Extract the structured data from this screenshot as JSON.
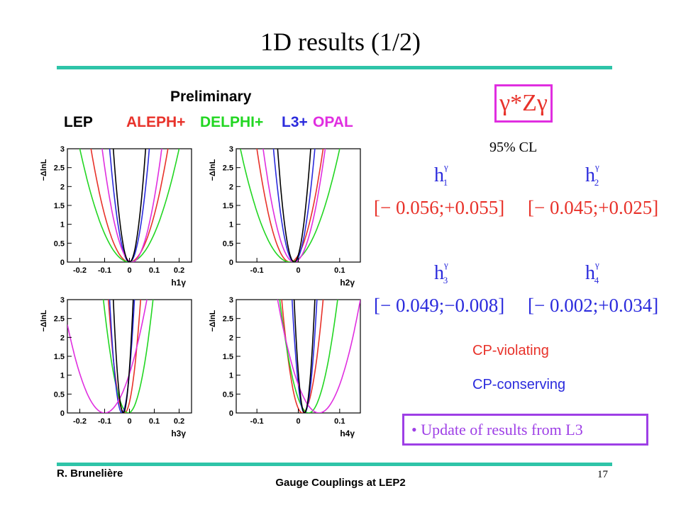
{
  "slide": {
    "title": "1D results (1/2)",
    "author": "R. Brunelière",
    "footer": "Gauge Couplings at LEP2",
    "page": "17"
  },
  "figure": {
    "header": "Preliminary",
    "legend": {
      "lep": "LEP",
      "aleph": "ALEPH+",
      "delphi": "DELPHI+",
      "l3": "L3+",
      "opal": "OPAL"
    },
    "ylabel": "−ΔlnL"
  },
  "colors": {
    "ALEPH": "#e8322a",
    "DELPHI": "#22d622",
    "L3": "#2b2bdd",
    "OPAL": "#e02ee0",
    "LEP": "#000000",
    "accent_rule": "#2ec4a8",
    "box": "#e02ee0",
    "update_box": "#9e3fe6"
  },
  "process": {
    "label": "γ*Zγ",
    "cl": "95% CL"
  },
  "results": [
    {
      "name": "h",
      "sub": "1",
      "sup": "γ",
      "interval": "[− 0.056;+0.055]"
    },
    {
      "name": "h",
      "sub": "2",
      "sup": "γ",
      "interval": "[− 0.045;+0.025]"
    },
    {
      "name": "h",
      "sub": "3",
      "sup": "γ",
      "interval": "[− 0.049;−0.008]"
    },
    {
      "name": "h",
      "sub": "4",
      "sup": "γ",
      "interval": "[− 0.002;+0.034]"
    }
  ],
  "notes": {
    "cp_violating": "CP-violating",
    "cp_conserving": "CP-conserving",
    "update": "Update of results from L3"
  },
  "chart_data": [
    {
      "type": "line",
      "xlabel": "h1γ",
      "ylabel": "−ΔlnL",
      "xlim": [
        -0.25,
        0.25
      ],
      "ylim": [
        0,
        3
      ],
      "xticks": [
        "-0.2",
        "-0.1",
        "0",
        "0.1",
        "0.2"
      ],
      "yticks": [
        "0",
        "0.5",
        "1",
        "1.5",
        "2",
        "2.5",
        "3"
      ],
      "series": [
        {
          "name": "ALEPH",
          "min_x": 0.0,
          "halfwidth_at_3": 0.155
        },
        {
          "name": "DELPHI",
          "min_x": 0.0,
          "halfwidth_at_3": 0.2
        },
        {
          "name": "L3",
          "min_x": 0.0,
          "halfwidth_at_3": 0.08
        },
        {
          "name": "OPAL",
          "min_x": 0.01,
          "halfwidth_at_3": 0.12
        },
        {
          "name": "LEP",
          "min_x": 0.0,
          "halfwidth_at_3": 0.065
        }
      ]
    },
    {
      "type": "line",
      "xlabel": "h2γ",
      "ylabel": "−ΔlnL",
      "xlim": [
        -0.15,
        0.15
      ],
      "ylim": [
        0,
        3
      ],
      "xticks": [
        "-0.1",
        "0",
        "0.1"
      ],
      "yticks": [
        "0",
        "0.5",
        "1",
        "1.5",
        "2",
        "2.5",
        "3"
      ],
      "series": [
        {
          "name": "ALEPH",
          "min_x": -0.02,
          "halfwidth_at_3": 0.08
        },
        {
          "name": "DELPHI",
          "min_x": -0.02,
          "halfwidth_at_3": 0.12
        },
        {
          "name": "L3",
          "min_x": -0.01,
          "halfwidth_at_3": 0.05
        },
        {
          "name": "OPAL",
          "min_x": -0.01,
          "halfwidth_at_3": 0.075
        },
        {
          "name": "LEP",
          "min_x": -0.01,
          "halfwidth_at_3": 0.04
        }
      ]
    },
    {
      "type": "line",
      "xlabel": "h3γ",
      "ylabel": "−ΔlnL",
      "xlim": [
        -0.25,
        0.25
      ],
      "ylim": [
        0,
        3
      ],
      "xticks": [
        "-0.2",
        "-0.1",
        "0",
        "0.1",
        "0.2"
      ],
      "yticks": [
        "0",
        "0.5",
        "1",
        "1.5",
        "2",
        "2.5",
        "3"
      ],
      "series": [
        {
          "name": "ALEPH",
          "min_x": -0.02,
          "halfwidth_at_3": 0.065
        },
        {
          "name": "DELPHI",
          "min_x": -0.005,
          "halfwidth_at_3": 0.1
        },
        {
          "name": "L3",
          "min_x": -0.03,
          "halfwidth_at_3": 0.05
        },
        {
          "name": "OPAL",
          "min_x": -0.1,
          "halfwidth_at_3": 0.17
        },
        {
          "name": "LEP",
          "min_x": -0.025,
          "halfwidth_at_3": 0.04
        }
      ]
    },
    {
      "type": "line",
      "xlabel": "h4γ",
      "ylabel": "−ΔlnL",
      "xlim": [
        -0.15,
        0.15
      ],
      "ylim": [
        0,
        3
      ],
      "xticks": [
        "-0.1",
        "0",
        "0.1"
      ],
      "yticks": [
        "0",
        "0.5",
        "1",
        "1.5",
        "2",
        "2.5",
        "3"
      ],
      "series": [
        {
          "name": "ALEPH",
          "min_x": 0.01,
          "halfwidth_at_3": 0.05
        },
        {
          "name": "DELPHI",
          "min_x": 0.025,
          "halfwidth_at_3": 0.07
        },
        {
          "name": "L3",
          "min_x": 0.015,
          "halfwidth_at_3": 0.03
        },
        {
          "name": "OPAL",
          "min_x": 0.05,
          "halfwidth_at_3": 0.1
        },
        {
          "name": "LEP",
          "min_x": 0.015,
          "halfwidth_at_3": 0.025
        }
      ]
    }
  ]
}
